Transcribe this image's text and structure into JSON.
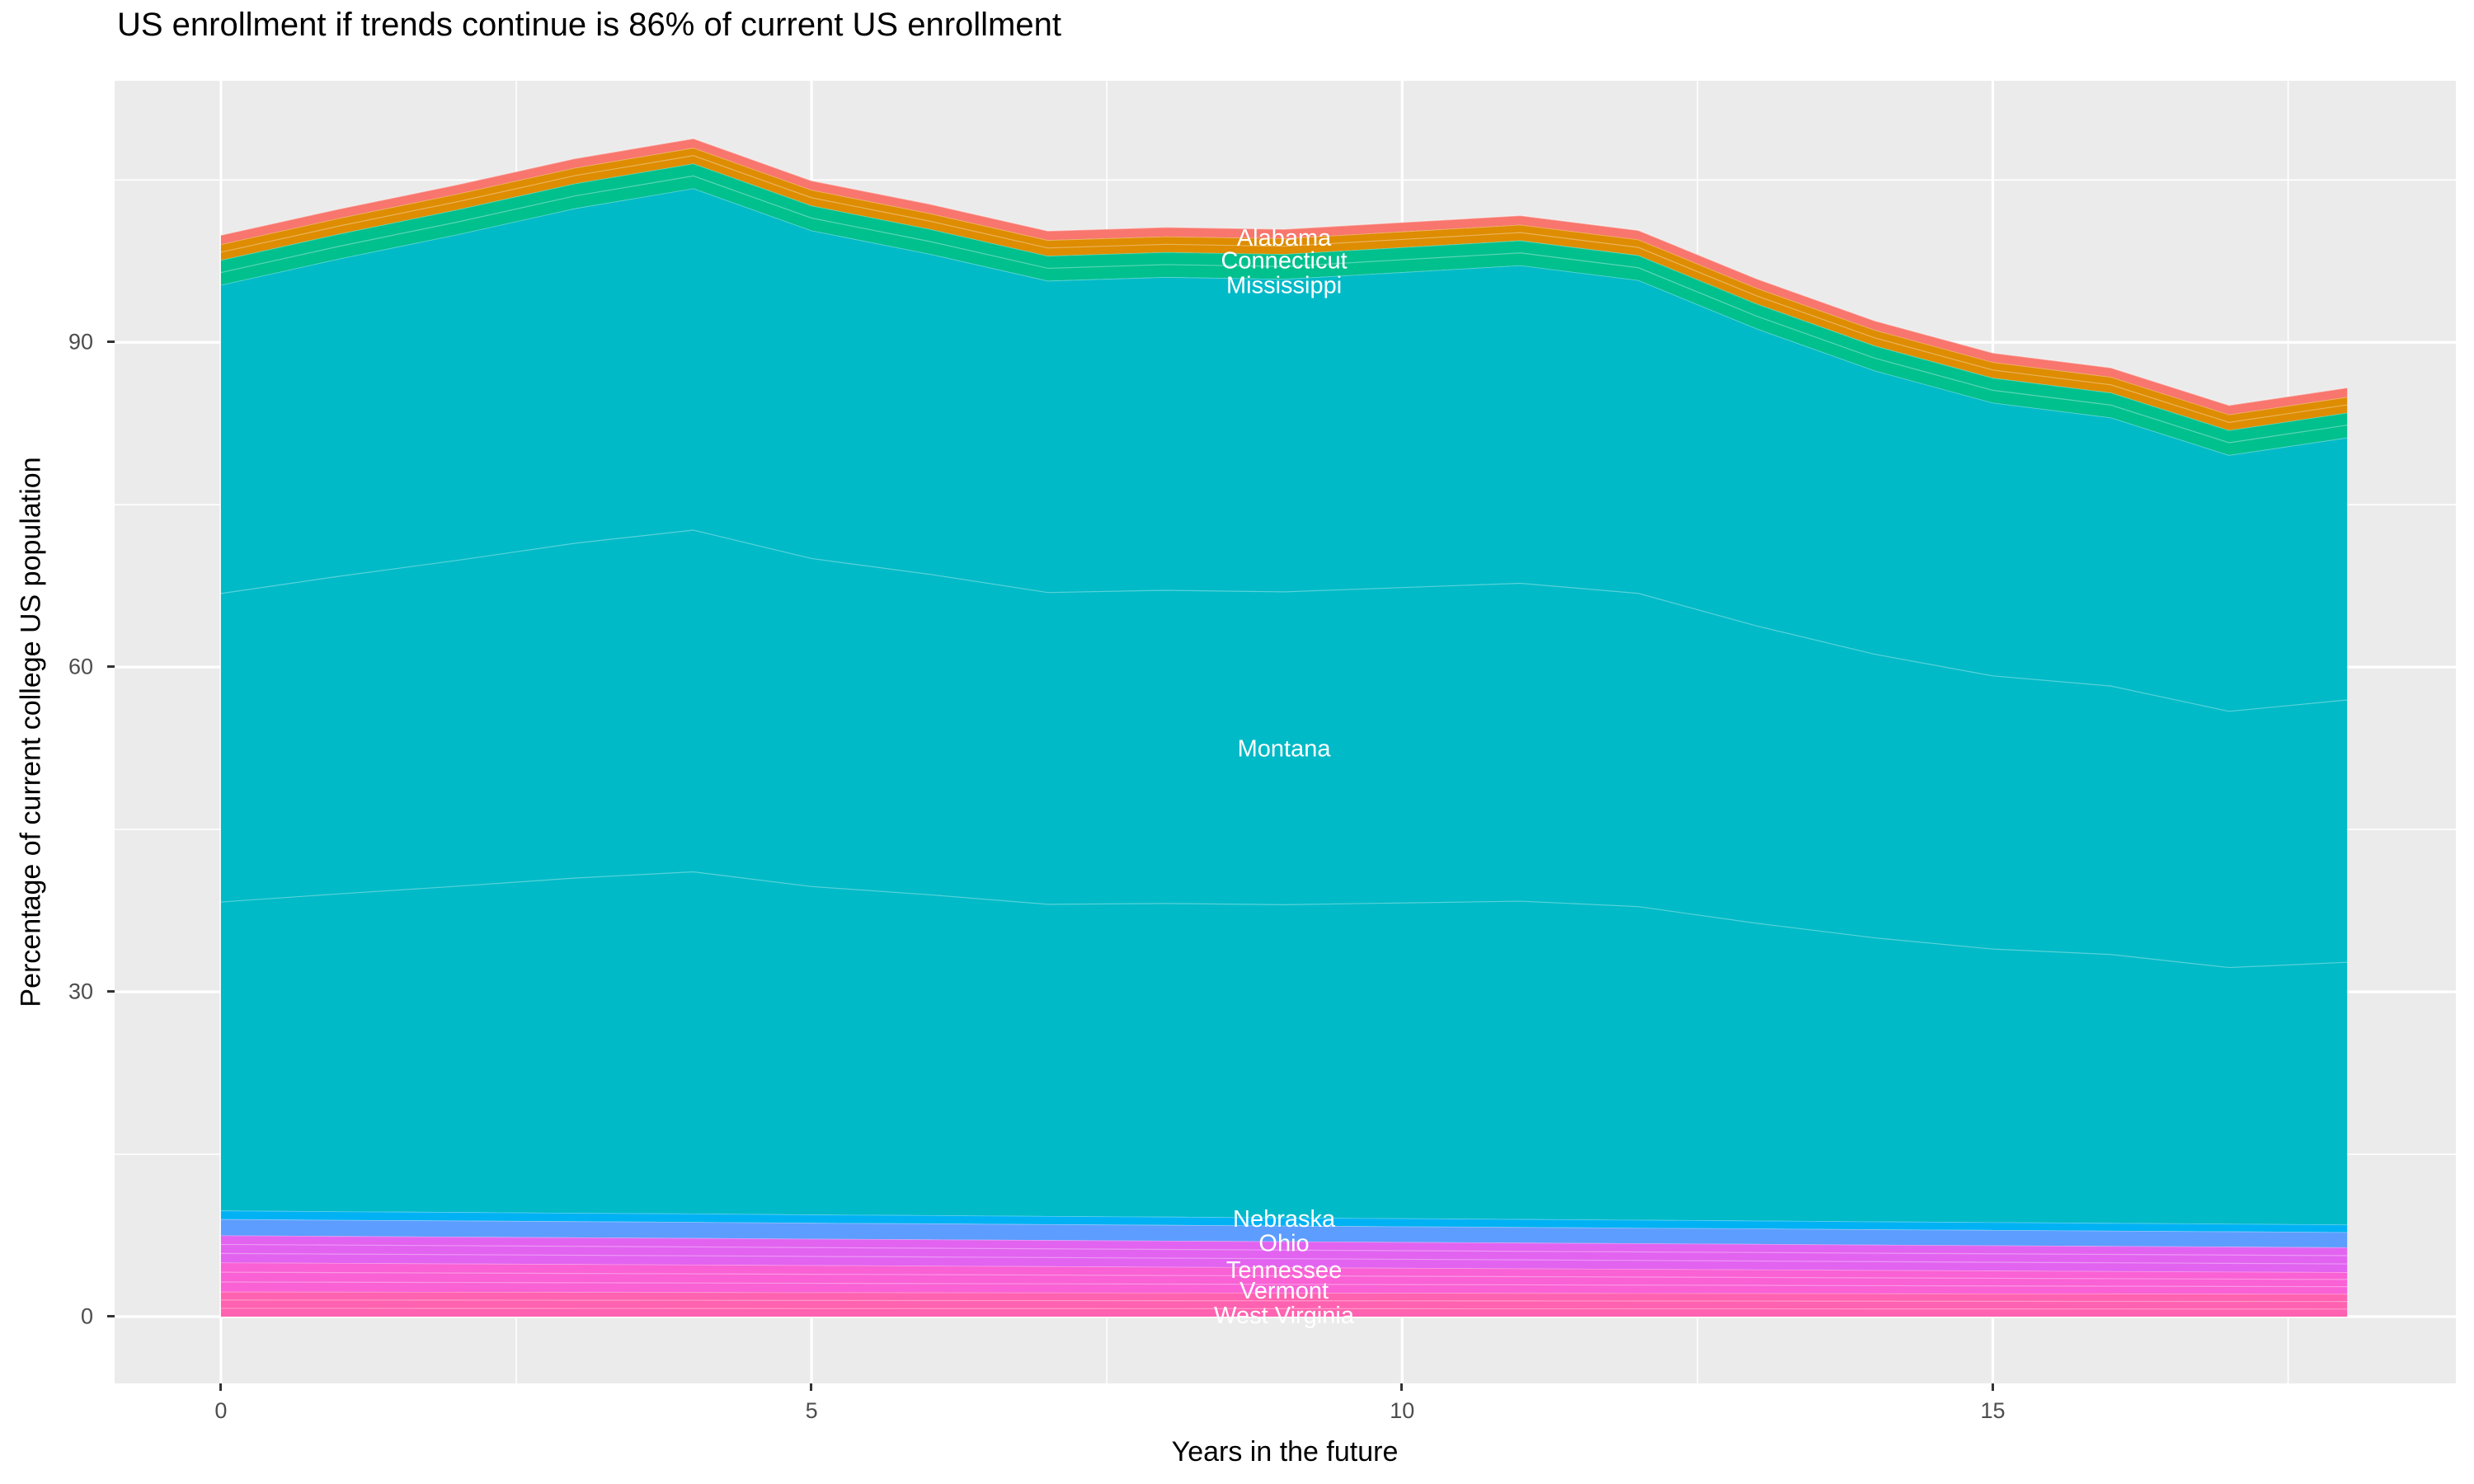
{
  "chart_data": {
    "type": "area",
    "title": "US enrollment if trends continue is 86% of current US enrollment",
    "xlabel": "Years in the future",
    "ylabel": "Percentage of current college US population",
    "legend": "none (bands labeled inline in white text at x=9)",
    "grid": "major and minor white gridlines on gray panel",
    "panel_bg": "#EBEBEB",
    "grid_color": "#FFFFFF",
    "tick_text_color": "#4D4D4D",
    "tick_mark_color": "#333333",
    "label_text_color": "#FFFFFF",
    "xlim": [
      -0.9,
      18.92
    ],
    "ylim": [
      -6.17,
      114.16
    ],
    "x_ticks": [
      0,
      5,
      10,
      15
    ],
    "x_minor_ticks": [
      2.5,
      7.5,
      12.5,
      17.5
    ],
    "y_ticks": [
      0,
      30,
      60,
      90
    ],
    "y_minor_ticks": [
      15,
      45,
      75,
      105
    ],
    "x": [
      0,
      1,
      2,
      3,
      4,
      5,
      6,
      7,
      8,
      9,
      10,
      11,
      12,
      13,
      14,
      15,
      16,
      17,
      18
    ],
    "total_top": [
      99.9,
      102.3,
      104.5,
      107.0,
      108.8,
      104.9,
      102.8,
      100.3,
      100.6,
      100.4,
      101.1,
      101.7,
      100.3,
      95.8,
      92.0,
      89.0,
      87.6,
      84.2,
      85.8
    ],
    "label_x": 9,
    "series_note": "stacked top-to-bottom; values are band thickness (% of current US college population) per year",
    "series": [
      {
        "name": "Alabama",
        "color": "#F8766D",
        "label_y": 99.7,
        "substripes": 1,
        "values": [
          0.85,
          0.85,
          0.85,
          0.85,
          0.85,
          0.85,
          0.85,
          0.85,
          0.85,
          0.85,
          0.85,
          0.85,
          0.85,
          0.85,
          0.85,
          0.85,
          0.85,
          0.85,
          0.85
        ]
      },
      {
        "name": "Connecticut",
        "color": "#DE8C00",
        "label_y": 97.6,
        "substripes": 2,
        "values": [
          1.45,
          1.45,
          1.45,
          1.45,
          1.45,
          1.45,
          1.45,
          1.45,
          1.45,
          1.45,
          1.45,
          1.45,
          1.45,
          1.45,
          1.45,
          1.45,
          1.45,
          1.45,
          1.45
        ]
      },
      {
        "name": "Mississippi",
        "color": "#00C08D",
        "label_y": 95.3,
        "substripes": 2,
        "values": [
          2.3,
          2.3,
          2.3,
          2.3,
          2.3,
          2.3,
          2.3,
          2.3,
          2.3,
          2.3,
          2.3,
          2.3,
          2.3,
          2.3,
          2.3,
          2.3,
          2.3,
          2.3,
          2.3
        ]
      },
      {
        "name": "Montana",
        "color": "#00BAC7",
        "label_y": 52.5,
        "substripes": 3,
        "values": [
          85.5,
          88.0,
          90.3,
          92.8,
          94.7,
          90.9,
          88.8,
          86.4,
          86.8,
          86.7,
          87.4,
          88.1,
          86.8,
          82.4,
          78.6,
          75.7,
          74.4,
          71.0,
          72.7
        ]
      },
      {
        "name": "Nebraska",
        "color": "#00B2F3",
        "label_y": 9.05,
        "substripes": 1,
        "values": [
          0.8,
          0.79,
          0.79,
          0.78,
          0.78,
          0.77,
          0.77,
          0.76,
          0.76,
          0.75,
          0.75,
          0.74,
          0.74,
          0.73,
          0.73,
          0.72,
          0.72,
          0.71,
          0.7
        ]
      },
      {
        "name": "Ohio",
        "color": "#5C9DFF",
        "label_y": 6.8,
        "substripes": 1,
        "values": [
          1.5,
          1.49,
          1.49,
          1.48,
          1.48,
          1.47,
          1.47,
          1.46,
          1.46,
          1.45,
          1.44,
          1.44,
          1.43,
          1.43,
          1.42,
          1.42,
          1.41,
          1.41,
          1.4
        ]
      },
      {
        "name": "Tennessee",
        "color": "#E263F0",
        "label_y": 4.35,
        "substripes": 3,
        "values": [
          2.5,
          2.49,
          2.48,
          2.47,
          2.46,
          2.44,
          2.43,
          2.42,
          2.41,
          2.4,
          2.39,
          2.38,
          2.37,
          2.36,
          2.34,
          2.33,
          2.32,
          2.31,
          2.3
        ]
      },
      {
        "name": "Vermont",
        "color": "#F961D5",
        "label_y": 2.45,
        "substripes": 3,
        "values": [
          2.7,
          2.66,
          2.62,
          2.58,
          2.54,
          2.51,
          2.47,
          2.43,
          2.39,
          2.35,
          2.31,
          2.27,
          2.23,
          2.19,
          2.16,
          2.12,
          2.08,
          2.04,
          2.0
        ]
      },
      {
        "name": "West Virginia",
        "color": "#FF62B0",
        "label_y": 0.15,
        "substripes": 3,
        "values": [
          2.3,
          2.29,
          2.28,
          2.27,
          2.26,
          2.24,
          2.23,
          2.22,
          2.21,
          2.2,
          2.19,
          2.18,
          2.17,
          2.16,
          2.14,
          2.13,
          2.12,
          2.11,
          2.1
        ]
      }
    ]
  }
}
